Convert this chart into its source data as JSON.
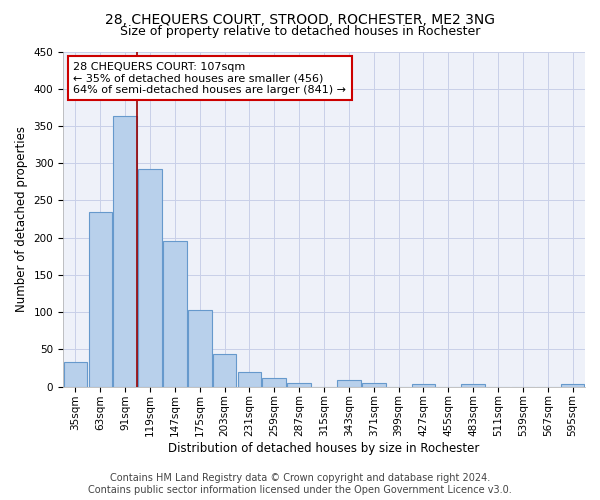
{
  "title": "28, CHEQUERS COURT, STROOD, ROCHESTER, ME2 3NG",
  "subtitle": "Size of property relative to detached houses in Rochester",
  "xlabel": "Distribution of detached houses by size in Rochester",
  "ylabel": "Number of detached properties",
  "categories": [
    "35sqm",
    "63sqm",
    "91sqm",
    "119sqm",
    "147sqm",
    "175sqm",
    "203sqm",
    "231sqm",
    "259sqm",
    "287sqm",
    "315sqm",
    "343sqm",
    "371sqm",
    "399sqm",
    "427sqm",
    "455sqm",
    "483sqm",
    "511sqm",
    "539sqm",
    "567sqm",
    "595sqm"
  ],
  "values": [
    33,
    235,
    363,
    292,
    196,
    103,
    44,
    20,
    11,
    5,
    0,
    9,
    5,
    0,
    3,
    0,
    4,
    0,
    0,
    0,
    3
  ],
  "bar_color": "#b8d0eb",
  "bar_edge_color": "#6699cc",
  "vline_color": "#990000",
  "annotation_line1": "28 CHEQUERS COURT: 107sqm",
  "annotation_line2": "← 35% of detached houses are smaller (456)",
  "annotation_line3": "64% of semi-detached houses are larger (841) →",
  "annotation_box_color": "white",
  "annotation_box_edge": "#cc0000",
  "ylim": [
    0,
    450
  ],
  "yticks": [
    0,
    50,
    100,
    150,
    200,
    250,
    300,
    350,
    400,
    450
  ],
  "background_color": "#eef1f9",
  "grid_color": "#c8cfe8",
  "footer_line1": "Contains HM Land Registry data © Crown copyright and database right 2024.",
  "footer_line2": "Contains public sector information licensed under the Open Government Licence v3.0.",
  "title_fontsize": 10,
  "subtitle_fontsize": 9,
  "xlabel_fontsize": 8.5,
  "ylabel_fontsize": 8.5,
  "tick_fontsize": 7.5,
  "annotation_fontsize": 8,
  "footer_fontsize": 7
}
